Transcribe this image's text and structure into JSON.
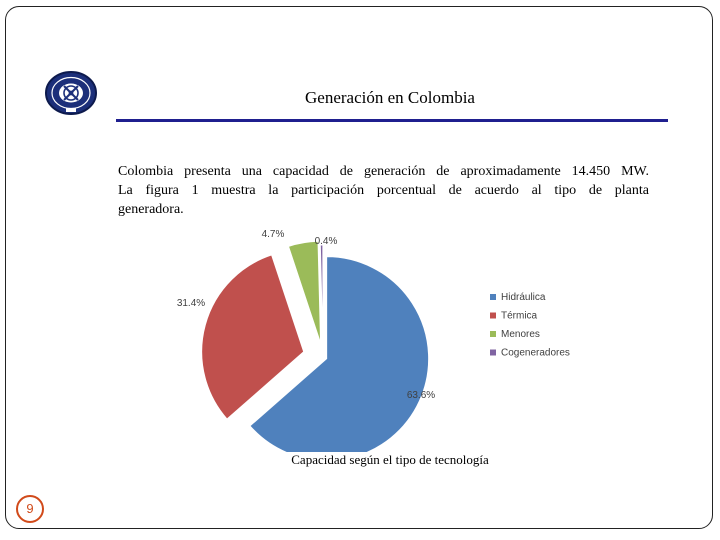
{
  "slide": {
    "title": "Generación en Colombia",
    "body_lines": [
      "Colombia presenta una capacidad de generación de aproximadamente 14.450 MW.",
      "La figura 1 muestra la participación porcentual de acuerdo al tipo de planta",
      "generadora."
    ],
    "caption": "Capacidad según el tipo de tecnología",
    "page_number": "9"
  },
  "colors": {
    "title_rule": "#1f1f8f",
    "page_number": "#d14a1a"
  },
  "chart_data": {
    "type": "pie",
    "title": "",
    "exploded": true,
    "legend_position": "right",
    "slices": [
      {
        "name": "Hidráulica",
        "value": 63.6,
        "label": "63.6%",
        "color": "#4f81bd"
      },
      {
        "name": "Térmica",
        "value": 31.4,
        "label": "31.4%",
        "color": "#c0504d"
      },
      {
        "name": "Menores",
        "value": 4.7,
        "label": "4.7%",
        "color": "#9bbb59"
      },
      {
        "name": "Cogeneradores",
        "value": 0.4,
        "label": "0.4%",
        "color": "#8064a2"
      }
    ]
  }
}
